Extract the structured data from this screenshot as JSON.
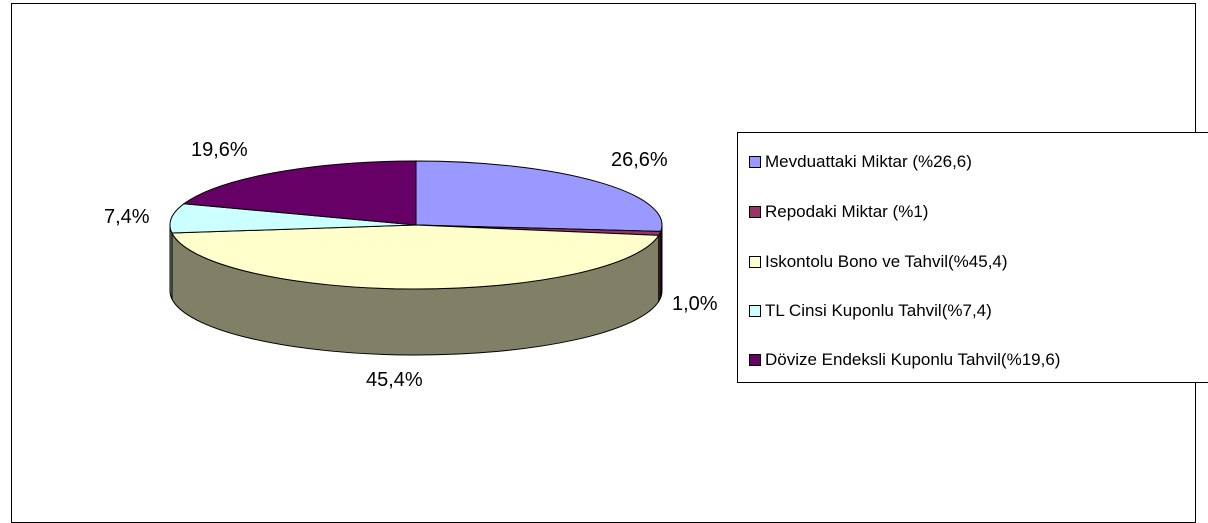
{
  "chart_data": {
    "type": "pie",
    "style": "3d",
    "categories": [
      "Mevduattaki Miktar (%26,6)",
      "Repodaki Miktar (%1)",
      "Iskontolu Bono ve Tahvil(%45,4)",
      "TL Cinsi Kuponlu Tahvil(%7,4)",
      "Dövize Endeksli Kuponlu Tahvil(%19,6)"
    ],
    "values": [
      26.6,
      1.0,
      45.4,
      7.4,
      19.6
    ],
    "data_labels": [
      "26,6%",
      "1,0%",
      "45,4%",
      "7,4%",
      "19,6%"
    ],
    "colors": [
      "#9999ff",
      "#993366",
      "#ffffcc",
      "#ccffff",
      "#660066"
    ],
    "side_colors": [
      "#5c5c99",
      "#5c1f3d",
      "#808066",
      "#7a9999",
      "#3d003d"
    ],
    "legend_position": "right",
    "title": ""
  }
}
